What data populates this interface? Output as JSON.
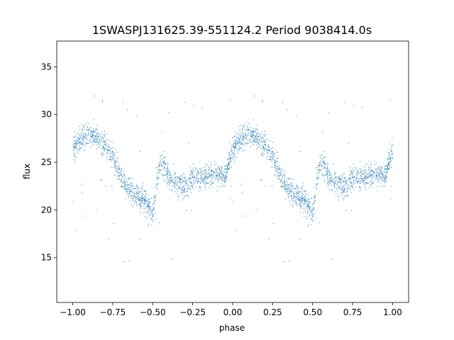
{
  "chart_data": {
    "type": "scatter",
    "title": "1SWASPJ131625.39-551124.2 Period 9038414.0s",
    "xlabel": "phase",
    "ylabel": "flux",
    "xlim": [
      -1.1,
      1.1
    ],
    "ylim": [
      10.3,
      37.7
    ],
    "xticks": [
      -1.0,
      -0.75,
      -0.5,
      -0.25,
      0.0,
      0.25,
      0.5,
      0.75,
      1.0
    ],
    "xtick_labels": [
      "−1.00",
      "−0.75",
      "−0.50",
      "−0.25",
      "0.00",
      "0.25",
      "0.50",
      "0.75",
      "1.00"
    ],
    "yticks": [
      15,
      20,
      25,
      30,
      35
    ],
    "ytick_labels": [
      "15",
      "20",
      "25",
      "30",
      "35"
    ],
    "grid": false,
    "marker_color": "#1f77b4",
    "profile": {
      "description_points_phase": [
        0.0,
        0.05,
        0.1,
        0.15,
        0.2,
        0.25,
        0.3,
        0.35,
        0.4,
        0.45,
        0.48,
        0.5,
        0.52,
        0.55,
        0.6,
        0.65,
        0.7,
        0.75,
        0.8,
        0.85,
        0.9,
        0.95,
        1.0
      ],
      "description_points_flux": [
        26.5,
        27.5,
        28.0,
        27.5,
        27.0,
        25.5,
        23.5,
        22.0,
        21.5,
        21.0,
        20.0,
        19.5,
        23.0,
        25.0,
        23.5,
        23.0,
        22.5,
        23.5,
        23.5,
        23.5,
        24.0,
        23.5,
        26.5
      ]
    }
  }
}
